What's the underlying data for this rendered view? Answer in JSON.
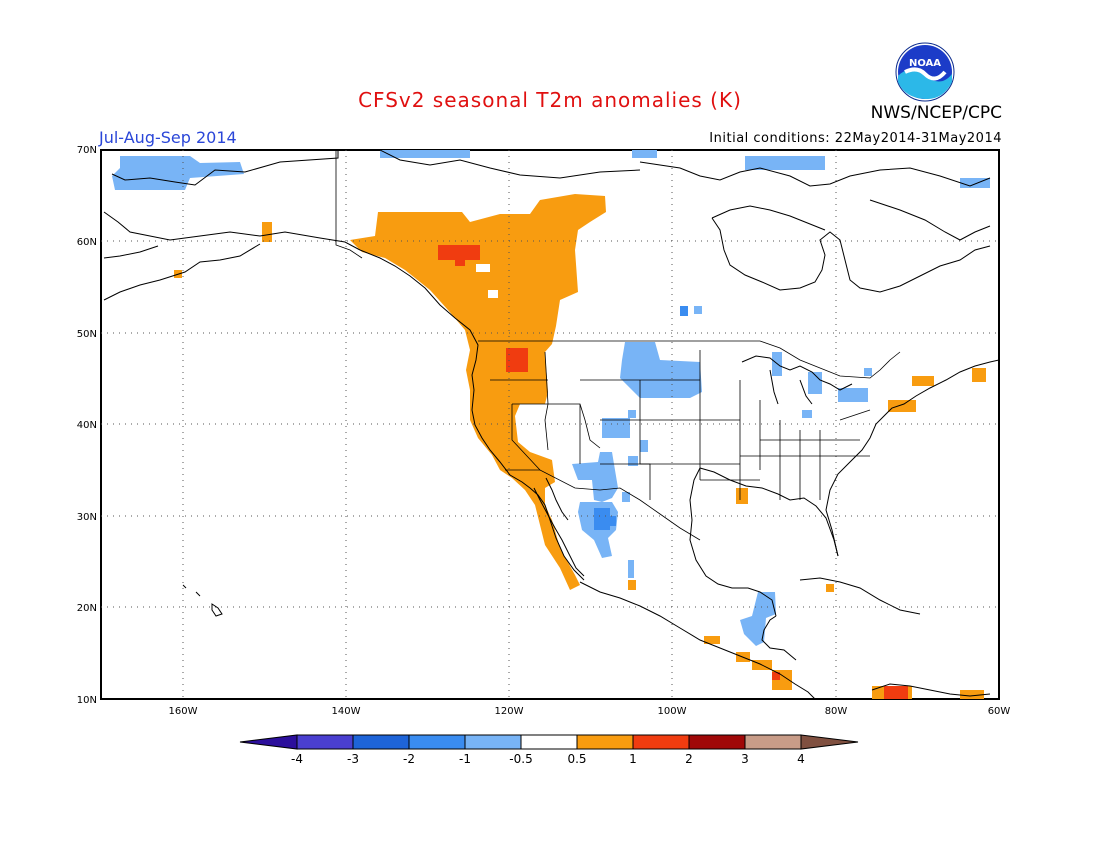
{
  "header": {
    "title": "CFSv2 seasonal T2m anomalies (K)",
    "agency": "NWS/NCEP/CPC",
    "season": "Jul-Aug-Sep 2014",
    "initial_conditions": "Initial conditions: 22May2014-31May2014",
    "logo_text": "NOAA"
  },
  "map": {
    "region": "North America",
    "projection": "lat-lon",
    "lon_range": [
      -170,
      -60
    ],
    "lat_range": [
      10,
      70
    ],
    "lat_ticks": [
      "70N",
      "60N",
      "50N",
      "40N",
      "30N",
      "20N",
      "10N"
    ],
    "lon_ticks": [
      "160W",
      "140W",
      "120W",
      "100W",
      "80W",
      "60W"
    ],
    "gridlines": "dotted",
    "anomaly_regions": [
      {
        "name": "Alaska north coast",
        "sign": "cold",
        "class": "-0.5 to -1"
      },
      {
        "name": "Pacific Northwest and western Canada",
        "sign": "warm",
        "class": "0.5 to 1"
      },
      {
        "name": "British Columbia interior",
        "sign": "warm",
        "class": "1 to 2"
      },
      {
        "name": "Northern Plains",
        "sign": "cold",
        "class": "-0.5 to -1"
      },
      {
        "name": "US Southwest / northern Mexico",
        "sign": "cold",
        "class": "-0.5 to -1"
      },
      {
        "name": "Baja California coast",
        "sign": "warm",
        "class": "0.5 to 1"
      },
      {
        "name": "Central America",
        "sign": "warm",
        "class": "0.5 to 1"
      },
      {
        "name": "Yucatan",
        "sign": "cold",
        "class": "-0.5 to -1"
      },
      {
        "name": "northern South America",
        "sign": "warm",
        "class": "1 to 2"
      }
    ]
  },
  "colorbar": {
    "labels": [
      "-4",
      "-3",
      "-2",
      "-1",
      "-0.5",
      "0.5",
      "1",
      "2",
      "3",
      "4"
    ],
    "colors": [
      "#2c0f9c",
      "#4a3fd0",
      "#1e64d8",
      "#3a8cf0",
      "#78b4f6",
      "#ffffff",
      "#f89c10",
      "#f03c10",
      "#a00808",
      "#c89c88",
      "#805040"
    ]
  }
}
